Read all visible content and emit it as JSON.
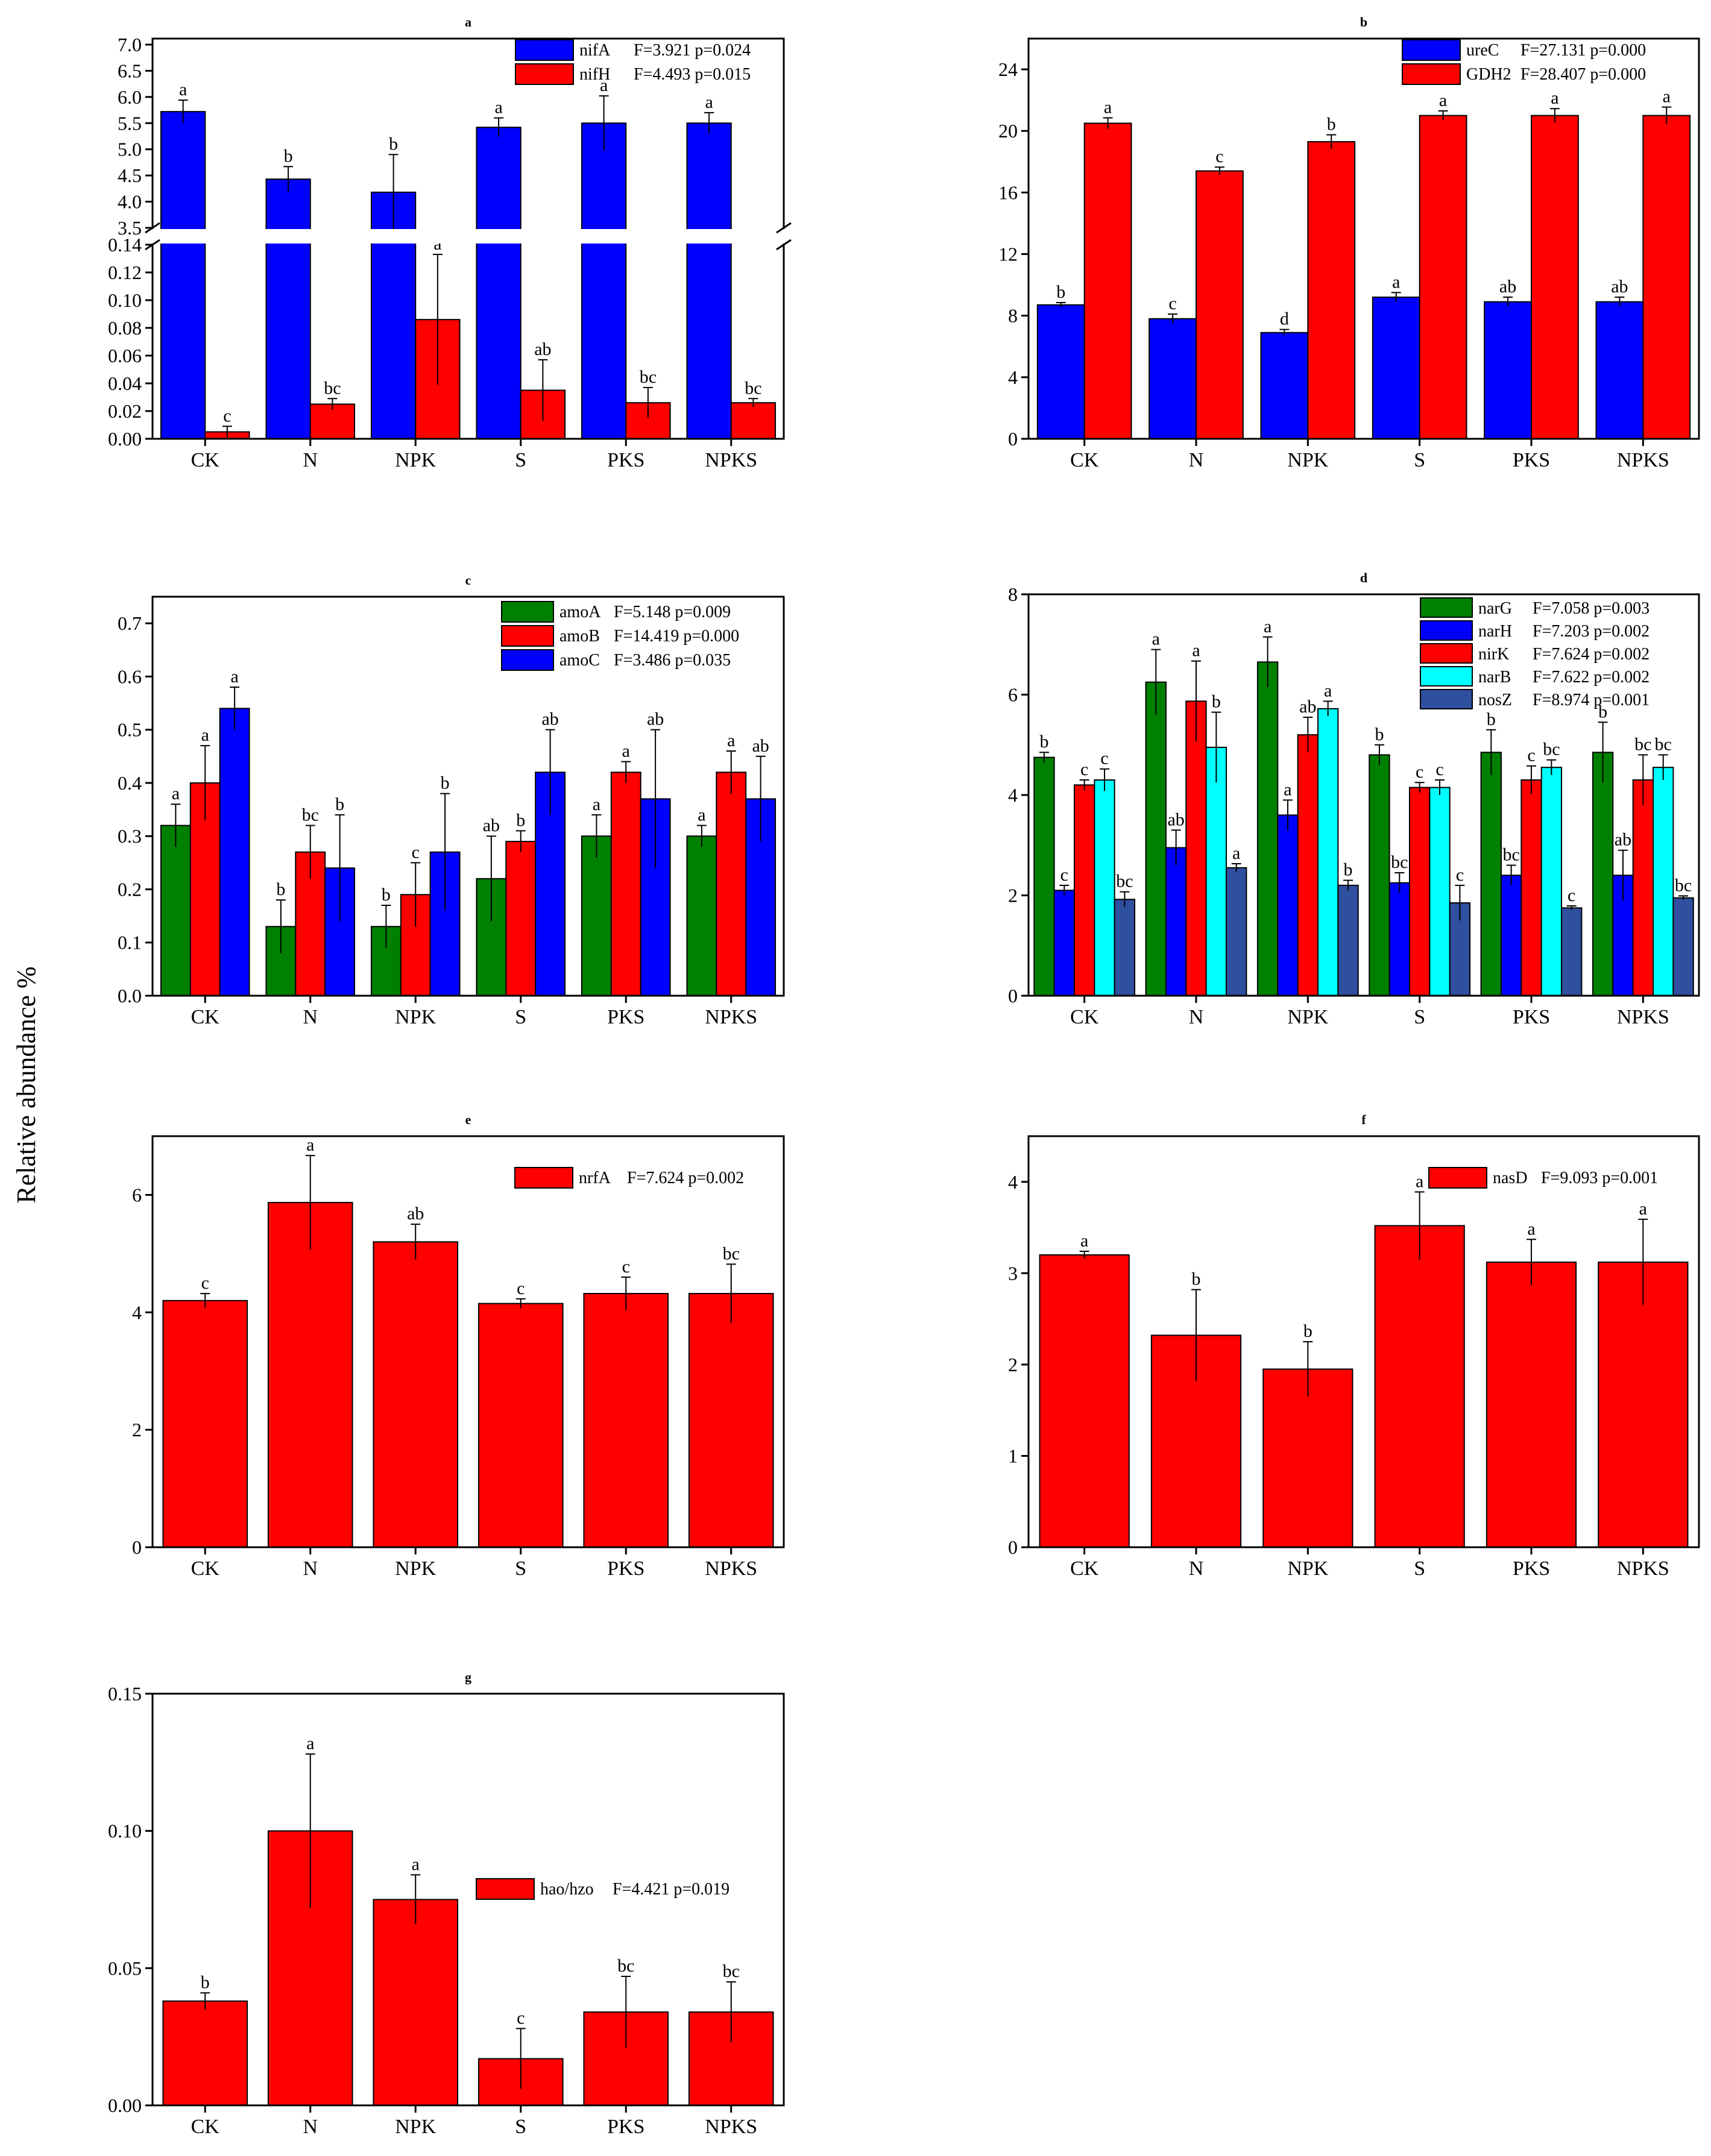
{
  "figure": {
    "ylabel": "Relative abundance %"
  },
  "chart_data": [
    {
      "id": "a",
      "type": "bar",
      "title": "a",
      "categories": [
        "CK",
        "N",
        "NPK",
        "S",
        "PKS",
        "NPKS"
      ],
      "axis_break": true,
      "ylim_lower": [
        0,
        0.14
      ],
      "yticks_lower": [
        "0.00",
        "0.02",
        "0.04",
        "0.06",
        "0.08",
        "0.10",
        "0.12",
        "0.14"
      ],
      "ylim_upper": [
        3.5,
        7.0
      ],
      "yticks_upper": [
        "3.5",
        "4.0",
        "4.5",
        "5.0",
        "5.5",
        "6.0",
        "6.5",
        "7.0"
      ],
      "series": [
        {
          "name": "nifA",
          "stat": "F=3.921 p=0.024",
          "color": "#0000ff",
          "values": [
            5.72,
            4.43,
            4.18,
            5.42,
            5.5,
            5.5
          ],
          "errors": [
            0.22,
            0.24,
            0.72,
            0.18,
            0.52,
            0.2
          ],
          "labels": [
            "a",
            "b",
            "b",
            "a",
            "a",
            "a"
          ]
        },
        {
          "name": "nifH",
          "stat": "F=4.493 p=0.015",
          "color": "#ff0000",
          "values": [
            0.005,
            0.025,
            0.086,
            0.035,
            0.026,
            0.026
          ],
          "errors": [
            0.004,
            0.004,
            0.047,
            0.022,
            0.011,
            0.003
          ],
          "labels": [
            "c",
            "bc",
            "a",
            "ab",
            "bc",
            "bc"
          ]
        }
      ]
    },
    {
      "id": "b",
      "type": "bar",
      "title": "b",
      "categories": [
        "CK",
        "N",
        "NPK",
        "S",
        "PKS",
        "NPKS"
      ],
      "ylim": [
        0,
        26
      ],
      "yticks": [
        "0",
        "4",
        "8",
        "12",
        "16",
        "20",
        "24"
      ],
      "series": [
        {
          "name": "ureC",
          "stat": "F=27.131 p=0.000",
          "color": "#0000ff",
          "values": [
            8.7,
            7.8,
            6.9,
            9.2,
            8.9,
            8.9
          ],
          "errors": [
            0.15,
            0.3,
            0.2,
            0.3,
            0.3,
            0.3
          ],
          "labels": [
            "b",
            "c",
            "d",
            "a",
            "ab",
            "ab"
          ]
        },
        {
          "name": "GDH2",
          "stat": "F=28.407 p=0.000",
          "color": "#ff0000",
          "values": [
            20.5,
            17.4,
            19.3,
            21.0,
            21.0,
            21.0
          ],
          "errors": [
            0.35,
            0.25,
            0.45,
            0.3,
            0.45,
            0.55
          ],
          "labels": [
            "a",
            "c",
            "b",
            "a",
            "a",
            "a"
          ]
        }
      ]
    },
    {
      "id": "c",
      "type": "bar",
      "title": "c",
      "categories": [
        "CK",
        "N",
        "NPK",
        "S",
        "PKS",
        "NPKS"
      ],
      "ylim": [
        0,
        0.75
      ],
      "yticks": [
        "0.0",
        "0.1",
        "0.2",
        "0.3",
        "0.4",
        "0.5",
        "0.6",
        "0.7"
      ],
      "series": [
        {
          "name": "amoA",
          "stat": "F=5.148 p=0.009",
          "color": "#008000",
          "values": [
            0.32,
            0.13,
            0.13,
            0.22,
            0.3,
            0.3
          ],
          "errors": [
            0.04,
            0.05,
            0.04,
            0.08,
            0.04,
            0.02
          ],
          "labels": [
            "a",
            "b",
            "b",
            "ab",
            "a",
            "a"
          ]
        },
        {
          "name": "amoB",
          "stat": "F=14.419 p=0.000",
          "color": "#ff0000",
          "values": [
            0.4,
            0.27,
            0.19,
            0.29,
            0.42,
            0.42
          ],
          "errors": [
            0.07,
            0.05,
            0.06,
            0.02,
            0.02,
            0.04
          ],
          "labels": [
            "a",
            "bc",
            "c",
            "b",
            "a",
            "a"
          ]
        },
        {
          "name": "amoC",
          "stat": "F=3.486 p=0.035",
          "color": "#0000ff",
          "values": [
            0.54,
            0.24,
            0.27,
            0.42,
            0.37,
            0.37
          ],
          "errors": [
            0.04,
            0.1,
            0.11,
            0.08,
            0.13,
            0.08
          ],
          "labels": [
            "a",
            "b",
            "b",
            "ab",
            "ab",
            "ab"
          ]
        }
      ]
    },
    {
      "id": "d",
      "type": "bar",
      "title": "d",
      "categories": [
        "CK",
        "N",
        "NPK",
        "S",
        "PKS",
        "NPKS"
      ],
      "ylim": [
        0,
        8
      ],
      "yticks": [
        "0",
        "2",
        "4",
        "6",
        "8"
      ],
      "series": [
        {
          "name": "narG",
          "stat": "F=7.058 p=0.003",
          "color": "#008000",
          "values": [
            4.75,
            6.25,
            6.65,
            4.8,
            4.85,
            4.85
          ],
          "errors": [
            0.1,
            0.65,
            0.5,
            0.2,
            0.45,
            0.6
          ],
          "labels": [
            "b",
            "a",
            "a",
            "b",
            "b",
            "b"
          ]
        },
        {
          "name": "narH",
          "stat": "F=7.203 p=0.002",
          "color": "#0000ff",
          "values": [
            2.1,
            2.95,
            3.6,
            2.25,
            2.4,
            2.4
          ],
          "errors": [
            0.1,
            0.35,
            0.3,
            0.2,
            0.2,
            0.5
          ],
          "labels": [
            "c",
            "ab",
            "a",
            "bc",
            "bc",
            "ab"
          ]
        },
        {
          "name": "nirK",
          "stat": "F=7.624 p=0.002",
          "color": "#ff0000",
          "values": [
            4.2,
            5.87,
            5.2,
            4.15,
            4.3,
            4.3
          ],
          "errors": [
            0.1,
            0.8,
            0.35,
            0.1,
            0.28,
            0.5
          ],
          "labels": [
            "c",
            "a",
            "ab",
            "c",
            "c",
            "bc"
          ]
        },
        {
          "name": "narB",
          "stat": "F=7.622 p=0.002",
          "color": "#00ffff",
          "values": [
            4.3,
            4.95,
            5.72,
            4.15,
            4.55,
            4.55
          ],
          "errors": [
            0.22,
            0.7,
            0.15,
            0.15,
            0.15,
            0.25
          ],
          "labels": [
            "c",
            "b",
            "a",
            "c",
            "bc",
            "bc"
          ]
        },
        {
          "name": "nosZ",
          "stat": "F=8.974 p=0.001",
          "color": "#2f4f9f",
          "values": [
            1.92,
            2.55,
            2.2,
            1.85,
            1.75,
            1.95
          ],
          "errors": [
            0.15,
            0.08,
            0.1,
            0.35,
            0.04,
            0.04
          ],
          "labels": [
            "bc",
            "a",
            "b",
            "c",
            "c",
            "bc"
          ]
        }
      ]
    },
    {
      "id": "e",
      "type": "bar",
      "title": "e",
      "categories": [
        "CK",
        "N",
        "NPK",
        "S",
        "PKS",
        "NPKS"
      ],
      "ylim": [
        0,
        7
      ],
      "yticks": [
        "0",
        "2",
        "4",
        "6"
      ],
      "series": [
        {
          "name": "nrfA",
          "stat": "F=7.624 p=0.002",
          "color": "#ff0000",
          "values": [
            4.2,
            5.87,
            5.2,
            4.15,
            4.32,
            4.32
          ],
          "errors": [
            0.12,
            0.8,
            0.3,
            0.08,
            0.28,
            0.5
          ],
          "labels": [
            "c",
            "a",
            "ab",
            "c",
            "c",
            "bc"
          ]
        }
      ]
    },
    {
      "id": "f",
      "type": "bar",
      "title": "f",
      "categories": [
        "CK",
        "N",
        "NPK",
        "S",
        "PKS",
        "NPKS"
      ],
      "ylim": [
        0,
        4.5
      ],
      "yticks": [
        "0",
        "1",
        "2",
        "3",
        "4"
      ],
      "series": [
        {
          "name": "nasD",
          "stat": "F=9.093 p=0.001",
          "color": "#ff0000",
          "values": [
            3.2,
            2.32,
            1.95,
            3.52,
            3.12,
            3.12
          ],
          "errors": [
            0.04,
            0.5,
            0.3,
            0.37,
            0.25,
            0.47
          ],
          "labels": [
            "a",
            "b",
            "b",
            "a",
            "a",
            "a"
          ]
        }
      ]
    },
    {
      "id": "g",
      "type": "bar",
      "title": "g",
      "categories": [
        "CK",
        "N",
        "NPK",
        "S",
        "PKS",
        "NPKS"
      ],
      "ylim": [
        0,
        0.15
      ],
      "yticks": [
        "0.00",
        "0.05",
        "0.10",
        "0.15"
      ],
      "series": [
        {
          "name": "hao/hzo",
          "stat": "F=4.421 p=0.019",
          "color": "#ff0000",
          "values": [
            0.038,
            0.1,
            0.075,
            0.017,
            0.034,
            0.034
          ],
          "errors": [
            0.003,
            0.028,
            0.009,
            0.011,
            0.013,
            0.011
          ],
          "labels": [
            "b",
            "a",
            "a",
            "c",
            "bc",
            "bc"
          ]
        }
      ]
    }
  ]
}
